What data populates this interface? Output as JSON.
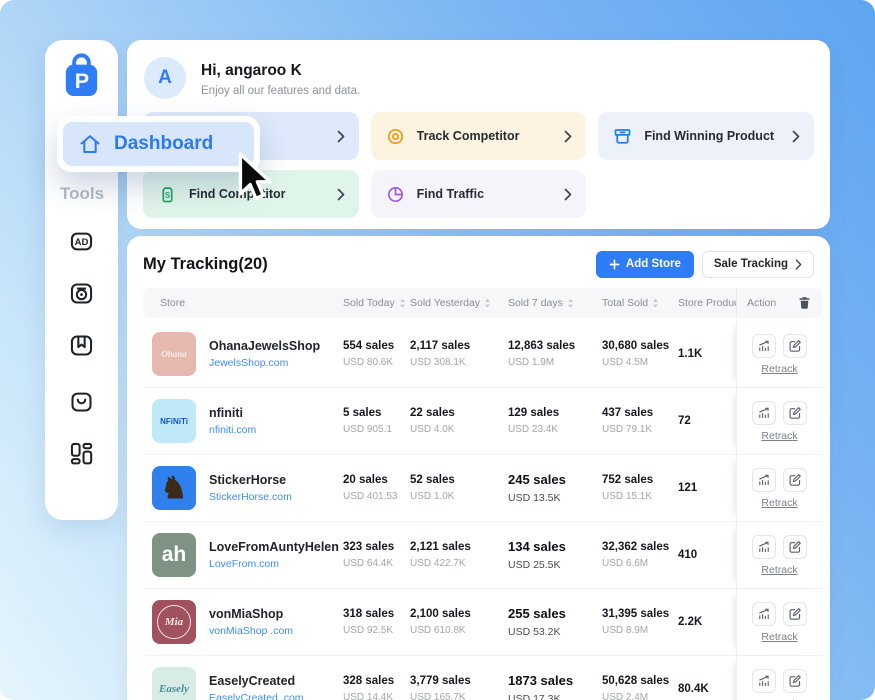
{
  "app": {
    "logo_letter": "P"
  },
  "sidebar": {
    "tools_label": "Tools",
    "dashboard_label": "Dashboard",
    "icons": [
      "ads-icon",
      "tracker-icon",
      "bookmark-icon",
      "store-bag-icon",
      "apps-grid-icon"
    ]
  },
  "header": {
    "avatar_letter": "A",
    "greeting": "Hi, angaroo K",
    "subtitle": "Enjoy all our features and data."
  },
  "feature_cards": [
    {
      "label": "",
      "icon": "",
      "bg": "#dfe9fc",
      "icon_color": ""
    },
    {
      "label": "Track Competitor",
      "icon": "target-icon",
      "bg": "#fcf3e1",
      "icon_color": "#f29b1d"
    },
    {
      "label": "Find Winning Product",
      "icon": "box-icon",
      "bg": "#edf2fa",
      "icon_color": "#2b7af0"
    },
    {
      "label": "Find Competitor",
      "icon": "bag-s-icon",
      "bg": "#e0f5ea",
      "icon_color": "#1ea564"
    },
    {
      "label": "Find Traffic",
      "icon": "pie-icon",
      "bg": "#f6f4fb",
      "icon_color": "#a254e8"
    }
  ],
  "tracking": {
    "title": "My Tracking(20)",
    "add_store_label": "Add Store",
    "sale_tracking_label": "Sale Tracking",
    "retrack": "Retrack",
    "columns": [
      "Store",
      "Sold Today",
      "Sold Yesterday",
      "Sold 7 days",
      "Total Sold",
      "Store Products",
      "Action"
    ],
    "rows": [
      {
        "name": "OhanaJewelsShop",
        "domain": "JewelsShop.com",
        "logo_text": "Ohana",
        "logo_bg": "#e6b9ae",
        "logo_color": "#f6ece7",
        "logo_size": 9,
        "logo_italic": true,
        "logo_ring": false,
        "today": "554 sales",
        "today_usd": "USD 80.6K",
        "yesterday": "2,117 sales",
        "yesterday_usd": "USD 308.1K",
        "seven": "12,863 sales",
        "seven_usd": "USD 1.9M",
        "seven_emph": false,
        "total": "30,680 sales",
        "total_usd": "USD 4.5M",
        "products": "1.1K"
      },
      {
        "name": "nfiniti",
        "domain": "nfiniti.com",
        "logo_text": "NFiNiTi",
        "logo_bg": "#bfe9f9",
        "logo_color": "#1653c9",
        "logo_size": 8,
        "logo_italic": false,
        "logo_ring": false,
        "today": "5 sales",
        "today_usd": "USD 905.1",
        "yesterday": "22 sales",
        "yesterday_usd": "USD 4.0K",
        "seven": "129 sales",
        "seven_usd": "USD 23.4K",
        "seven_emph": false,
        "total": "437 sales",
        "total_usd": "USD 79.1K",
        "products": "72"
      },
      {
        "name": "StickerHorse",
        "domain": "StickerHorse.com",
        "logo_text": "♞",
        "logo_bg": "#2f80ed",
        "logo_color": "#3a2a16",
        "logo_size": 30,
        "logo_italic": false,
        "logo_ring": false,
        "today": "20 sales",
        "today_usd": "USD 401.53",
        "yesterday": "52 sales",
        "yesterday_usd": "USD 1.0K",
        "seven": "245 sales",
        "seven_usd": "USD 13.5K",
        "seven_emph": true,
        "total": "752 sales",
        "total_usd": "USD 15.1K",
        "products": "121"
      },
      {
        "name": "LoveFromAuntyHelen",
        "domain": "LoveFrom.com",
        "logo_text": "ah",
        "logo_bg": "#7e9383",
        "logo_color": "#ffffff",
        "logo_size": 21,
        "logo_italic": false,
        "logo_ring": false,
        "today": "323 sales",
        "today_usd": "USD 64.4K",
        "yesterday": "2,121 sales",
        "yesterday_usd": "USD 422.7K",
        "seven": "134 sales",
        "seven_usd": "USD 25.5K",
        "seven_emph": true,
        "total": "32,362 sales",
        "total_usd": "USD 6.6M",
        "products": "410"
      },
      {
        "name": "vonMiaShop",
        "domain": "vonMiaShop .com",
        "logo_text": "Mia",
        "logo_bg": "#a2525f",
        "logo_color": "#f5e7e6",
        "logo_size": 11,
        "logo_italic": true,
        "logo_ring": true,
        "today": "318 sales",
        "today_usd": "USD 92.5K",
        "yesterday": "2,100 sales",
        "yesterday_usd": "USD 610.8K",
        "seven": "255 sales",
        "seven_usd": "USD 53.2K",
        "seven_emph": true,
        "total": "31,395 sales",
        "total_usd": "USD 8.9M",
        "products": "2.2K"
      },
      {
        "name": "EaselyCreated",
        "domain": "EaselyCreated .com",
        "logo_text": "Easely",
        "logo_bg": "#d8ece6",
        "logo_color": "#4a8f96",
        "logo_size": 11,
        "logo_italic": true,
        "logo_ring": false,
        "today": "328 sales",
        "today_usd": "USD 14.4K",
        "yesterday": "3,779 sales",
        "yesterday_usd": "USD 165.7K",
        "seven": "1873 sales",
        "seven_usd": "USD 17.3K",
        "seven_emph": true,
        "total": "50,628 sales",
        "total_usd": "USD 2.4M",
        "products": "80.4K"
      }
    ]
  }
}
